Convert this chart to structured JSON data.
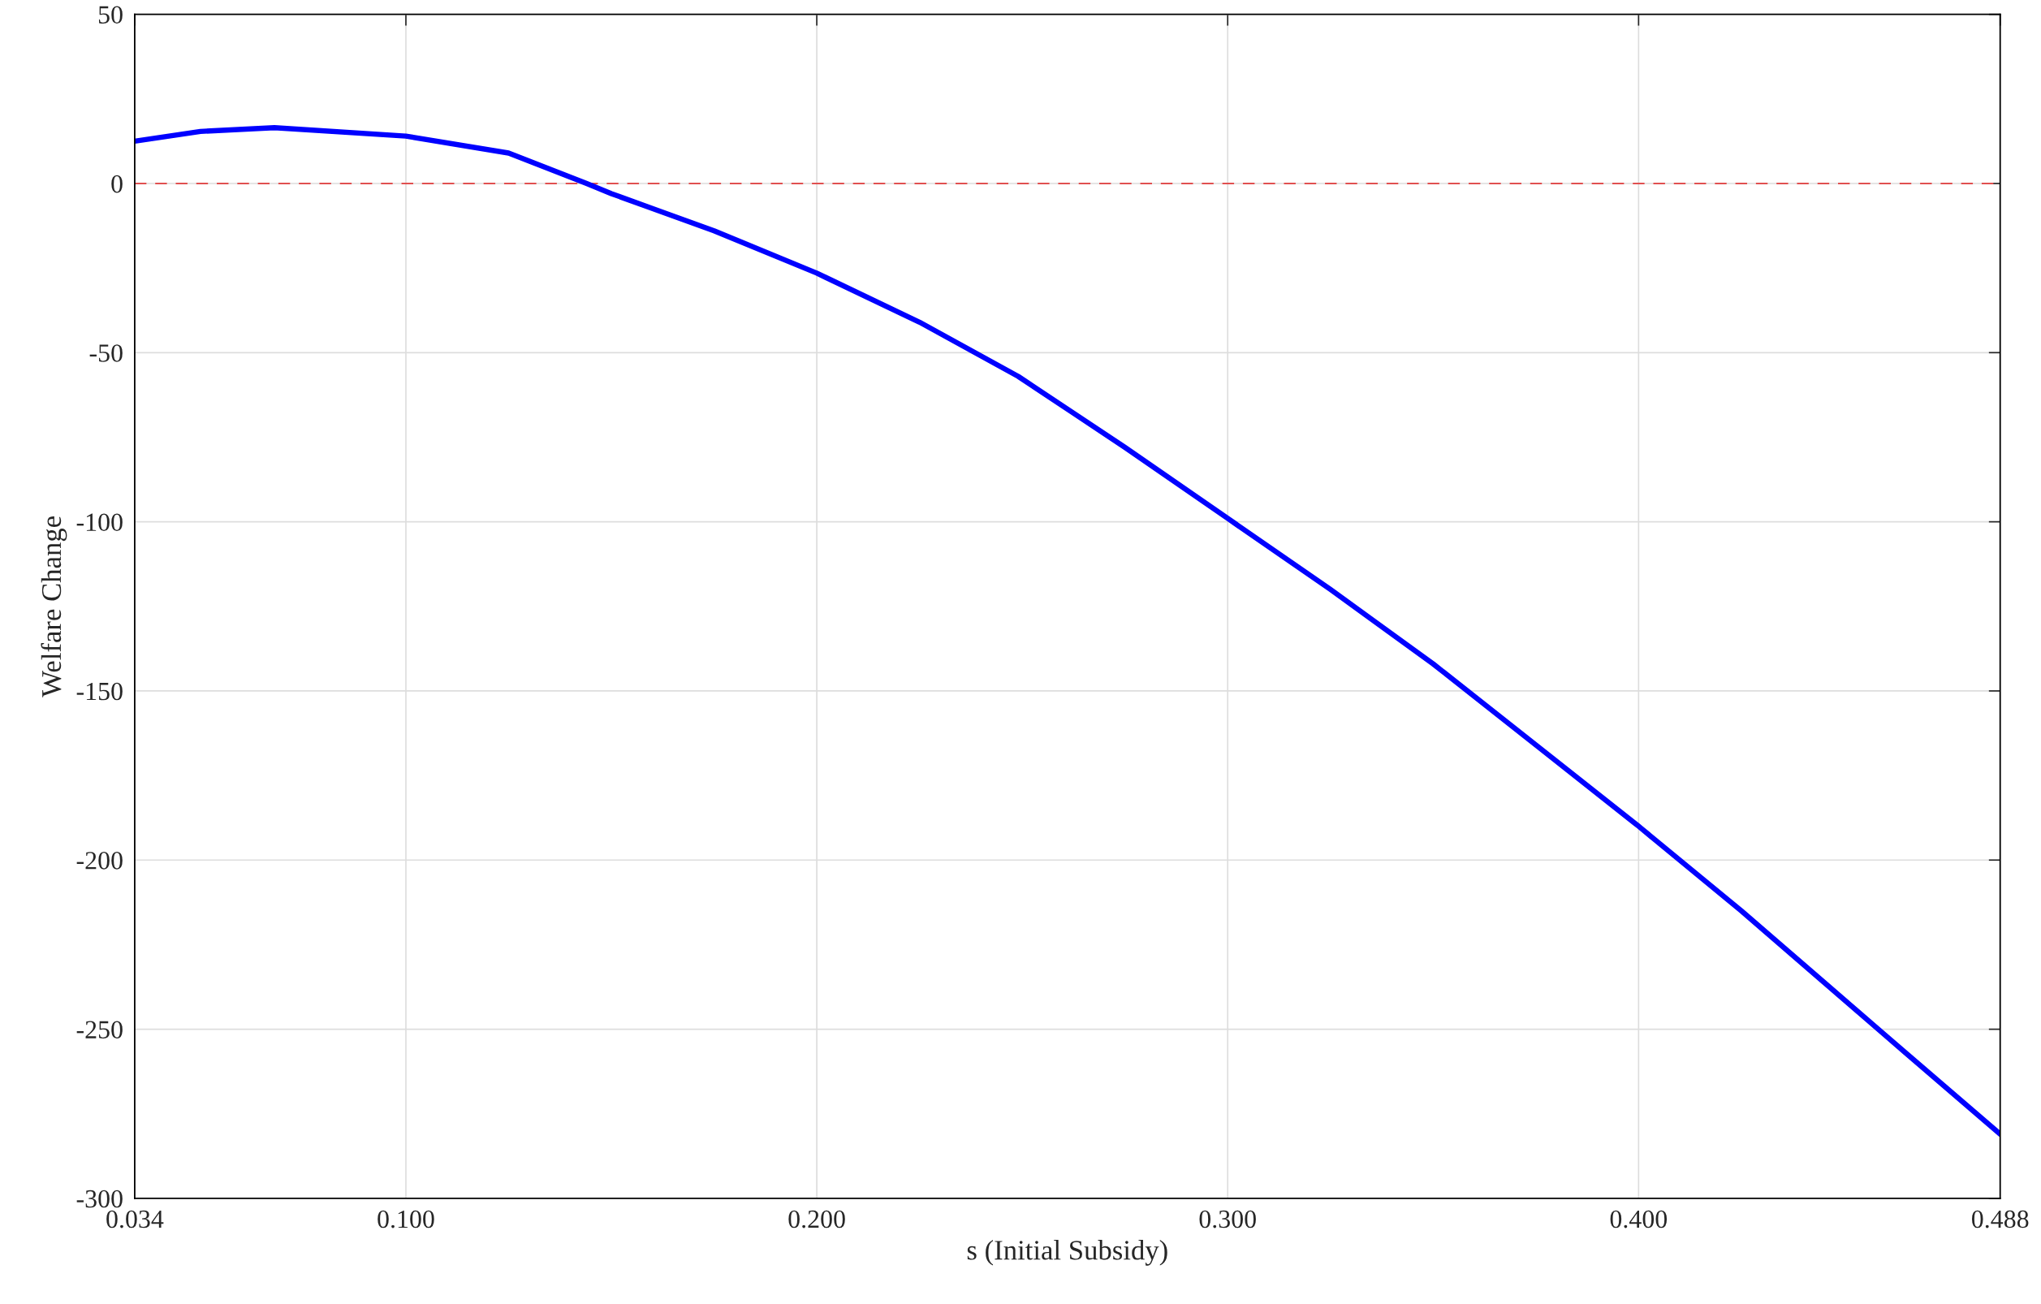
{
  "chart_data": {
    "type": "line",
    "xlabel": "s (Initial Subsidy)",
    "ylabel": "Welfare Change",
    "x": [
      0.034,
      0.05,
      0.068,
      0.1,
      0.125,
      0.144,
      0.15,
      0.175,
      0.2,
      0.225,
      0.249,
      0.275,
      0.3,
      0.325,
      0.35,
      0.375,
      0.4,
      0.425,
      0.445,
      0.465,
      0.488
    ],
    "series": [
      {
        "color": "#0000ff",
        "values": [
          12.5,
          15.4,
          16.5,
          14,
          9,
          0,
          -3,
          -14,
          -26.5,
          -41,
          -57,
          -78,
          -99,
          -120,
          -142,
          -166,
          -190,
          -215,
          -236,
          -257,
          -281
        ]
      }
    ],
    "xlim": [
      0.034,
      0.488
    ],
    "ylim": [
      -300,
      50
    ],
    "xticks": [
      {
        "value": 0.034,
        "label": "0.034"
      },
      {
        "value": 0.1,
        "label": "0.100"
      },
      {
        "value": 0.2,
        "label": "0.200"
      },
      {
        "value": 0.3,
        "label": "0.300"
      },
      {
        "value": 0.4,
        "label": "0.400"
      },
      {
        "value": 0.488,
        "label": "0.488"
      }
    ],
    "yticks": [
      -300,
      -250,
      -200,
      -150,
      -100,
      -50,
      0,
      50
    ],
    "ref_lines": [
      {
        "axis": "y",
        "value": 0,
        "color": "#e05050",
        "line_style": "dashed"
      }
    ],
    "grid": true,
    "line_style": "solid",
    "marker": "none"
  }
}
